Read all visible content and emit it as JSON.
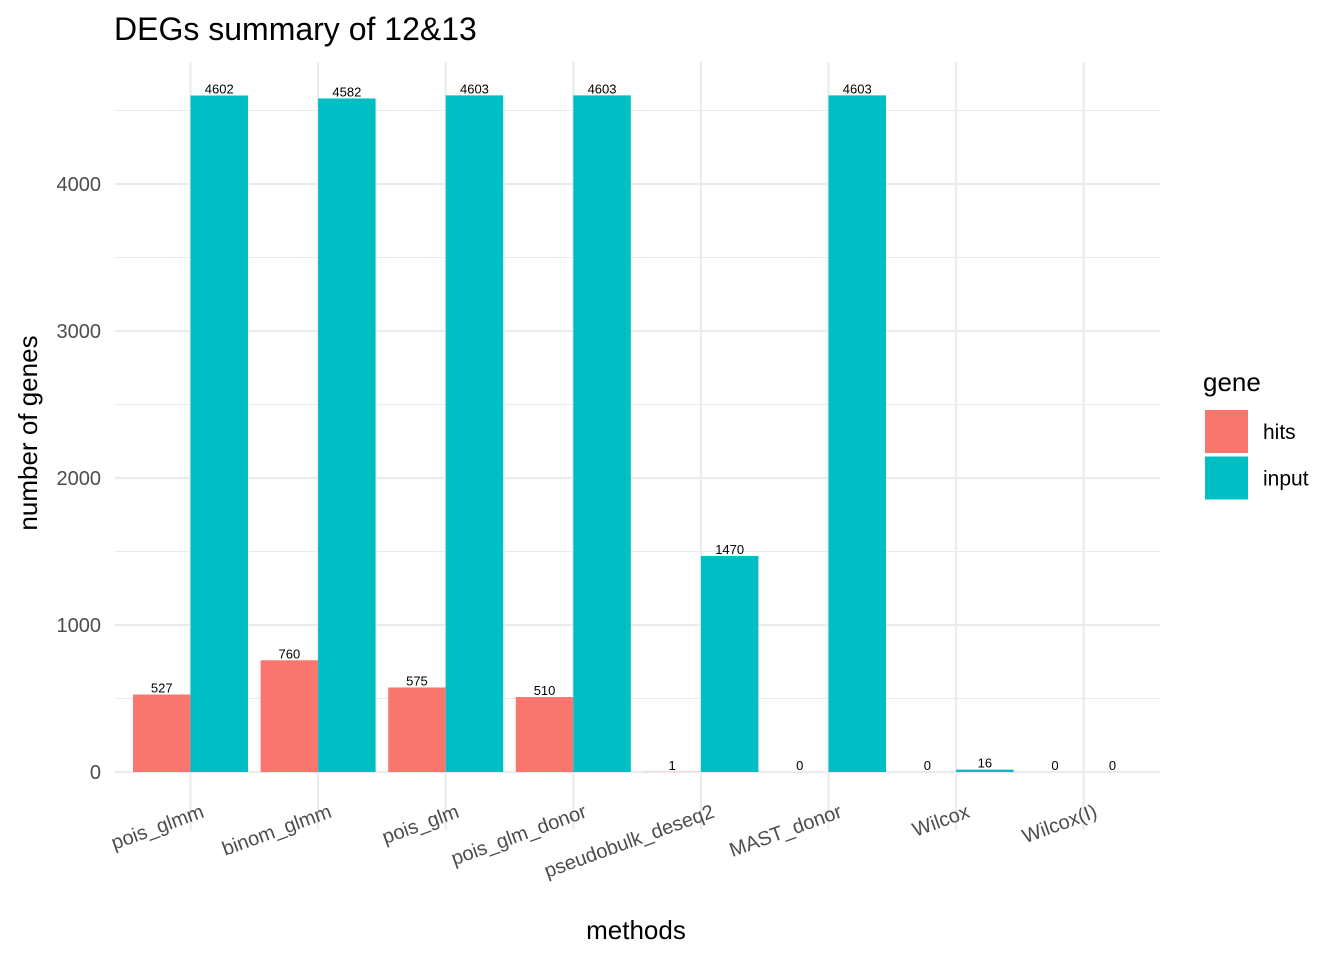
{
  "chart_data": {
    "type": "bar",
    "title": "DEGs summary of  12&13",
    "xlabel": "methods",
    "ylabel": "number of genes",
    "categories": [
      "pois_glmm",
      "binom_glmm",
      "pois_glm",
      "pois_glm_donor",
      "pseudobulk_deseq2",
      "MAST_donor",
      "Wilcox",
      "Wilcox(I)"
    ],
    "series": [
      {
        "name": "hits",
        "color": "#F8766D",
        "values": [
          527,
          760,
          575,
          510,
          1,
          0,
          0,
          0
        ]
      },
      {
        "name": "input",
        "color": "#00BFC4",
        "values": [
          4602,
          4582,
          4603,
          4603,
          1470,
          4603,
          16,
          0
        ]
      }
    ],
    "y_ticks": [
      0,
      1000,
      2000,
      3000,
      4000
    ],
    "ylim": [
      0,
      4800
    ],
    "grid": true,
    "legend": {
      "title": "gene",
      "placement": "right"
    }
  }
}
